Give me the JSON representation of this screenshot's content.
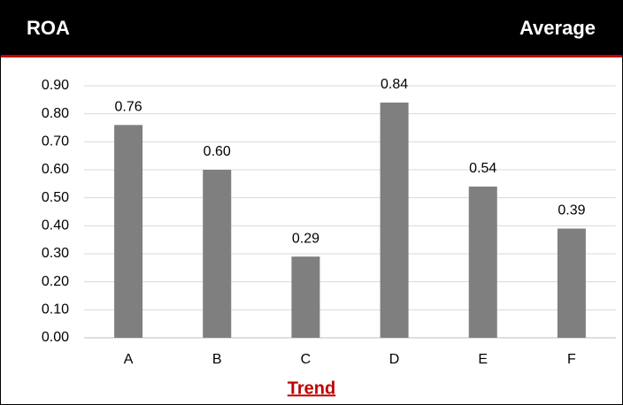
{
  "chart_data": {
    "type": "bar",
    "title": "ROA",
    "subtitle": "Average",
    "xlabel": "Trend",
    "categories": [
      "A",
      "B",
      "C",
      "D",
      "E",
      "F"
    ],
    "values": [
      0.76,
      0.6,
      0.29,
      0.84,
      0.54,
      0.39
    ],
    "value_labels": [
      "0.76",
      "0.60",
      "0.29",
      "0.84",
      "0.54",
      "0.39"
    ],
    "color": "#7f7f7f",
    "ylim": [
      0,
      0.9
    ],
    "yticks": [
      {
        "value": 0,
        "label": "0.00"
      },
      {
        "value": 0.1,
        "label": "0.10"
      },
      {
        "value": 0.2,
        "label": "0.20"
      },
      {
        "value": 0.3,
        "label": "0.30"
      },
      {
        "value": 0.4,
        "label": "0.40"
      },
      {
        "value": 0.5,
        "label": "0.50"
      },
      {
        "value": 0.6,
        "label": "0.60"
      },
      {
        "value": 0.7,
        "label": "0.70"
      },
      {
        "value": 0.8,
        "label": "0.80"
      },
      {
        "value": 0.9,
        "label": "0.90"
      }
    ],
    "grid": true
  }
}
